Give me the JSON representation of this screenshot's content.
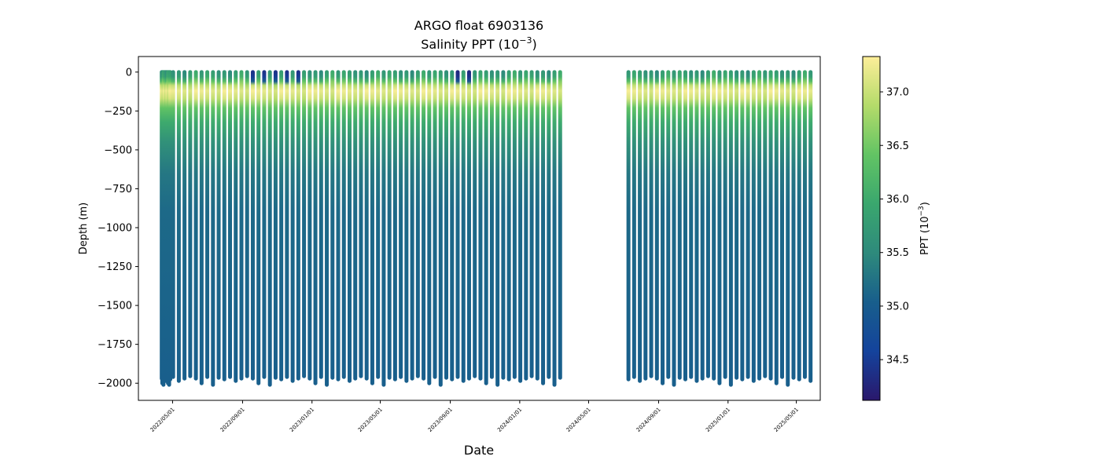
{
  "chart_data": {
    "type": "scatter",
    "title": "ARGO float 6903136",
    "subtitle_base": "Salinity PPT (10",
    "subtitle_exp": "−3",
    "subtitle_close": ")",
    "xlabel": "Date",
    "ylabel": "Depth (m)",
    "xlim": [
      "2022-03-02",
      "2025-06-12"
    ],
    "ylim": [
      -2110,
      100
    ],
    "x_ticks": [
      "2022/05/01",
      "2022/09/01",
      "2023/01/01",
      "2023/05/01",
      "2023/09/01",
      "2024/01/01",
      "2024/05/01",
      "2024/09/01",
      "2025/01/01",
      "2025/05/01"
    ],
    "y_ticks": [
      0,
      -250,
      -500,
      -750,
      -1000,
      -1250,
      -1500,
      -1750,
      -2000
    ],
    "y_tick_labels": [
      "0",
      "−250",
      "−500",
      "−750",
      "−1000",
      "−1250",
      "−1500",
      "−1750",
      "−2000"
    ],
    "grid": false,
    "colormap": "haline",
    "colormap_stops": [
      "#2a186c",
      "#14439c",
      "#185e8c",
      "#2e8a7c",
      "#3aa76e",
      "#62c464",
      "#b4db6a",
      "#fdee99"
    ],
    "colorbar": {
      "label_base": "PPT (10",
      "label_exp": "−3",
      "label_close": ")",
      "range": [
        34.12,
        37.33
      ],
      "ticks": [
        34.5,
        35.0,
        35.5,
        36.0,
        36.5,
        37.0
      ],
      "tick_labels": [
        "34.5",
        "35.0",
        "35.5",
        "36.0",
        "36.5",
        "37.0"
      ]
    },
    "profiles": {
      "segments": [
        {
          "start": "2022-04-12",
          "end": "2022-04-27",
          "interval_days": 1
        },
        {
          "start": "2022-05-02",
          "end": "2024-03-17",
          "interval_days": 10
        },
        {
          "start": "2024-07-10",
          "end": "2025-05-26",
          "interval_days": 10
        }
      ],
      "max_depth": [
        -1970,
        -2000,
        -1960,
        -2010,
        -1965,
        -1975,
        -1960,
        -1985,
        -1970,
        -1955
      ],
      "surface_salinity": [
        35.6,
        35.7,
        35.5,
        35.8,
        36.0,
        35.7,
        35.9,
        35.8
      ],
      "surface_fresh_periods": [
        {
          "start": "2022-09-01",
          "end": "2022-12-20",
          "surface_salinity": 34.4
        },
        {
          "start": "2023-09-01",
          "end": "2023-10-20",
          "surface_salinity": 34.3
        }
      ],
      "salinity_max_value": 37.3,
      "salinity_max_depth": -120,
      "deep_salinity": 35.05
    }
  }
}
